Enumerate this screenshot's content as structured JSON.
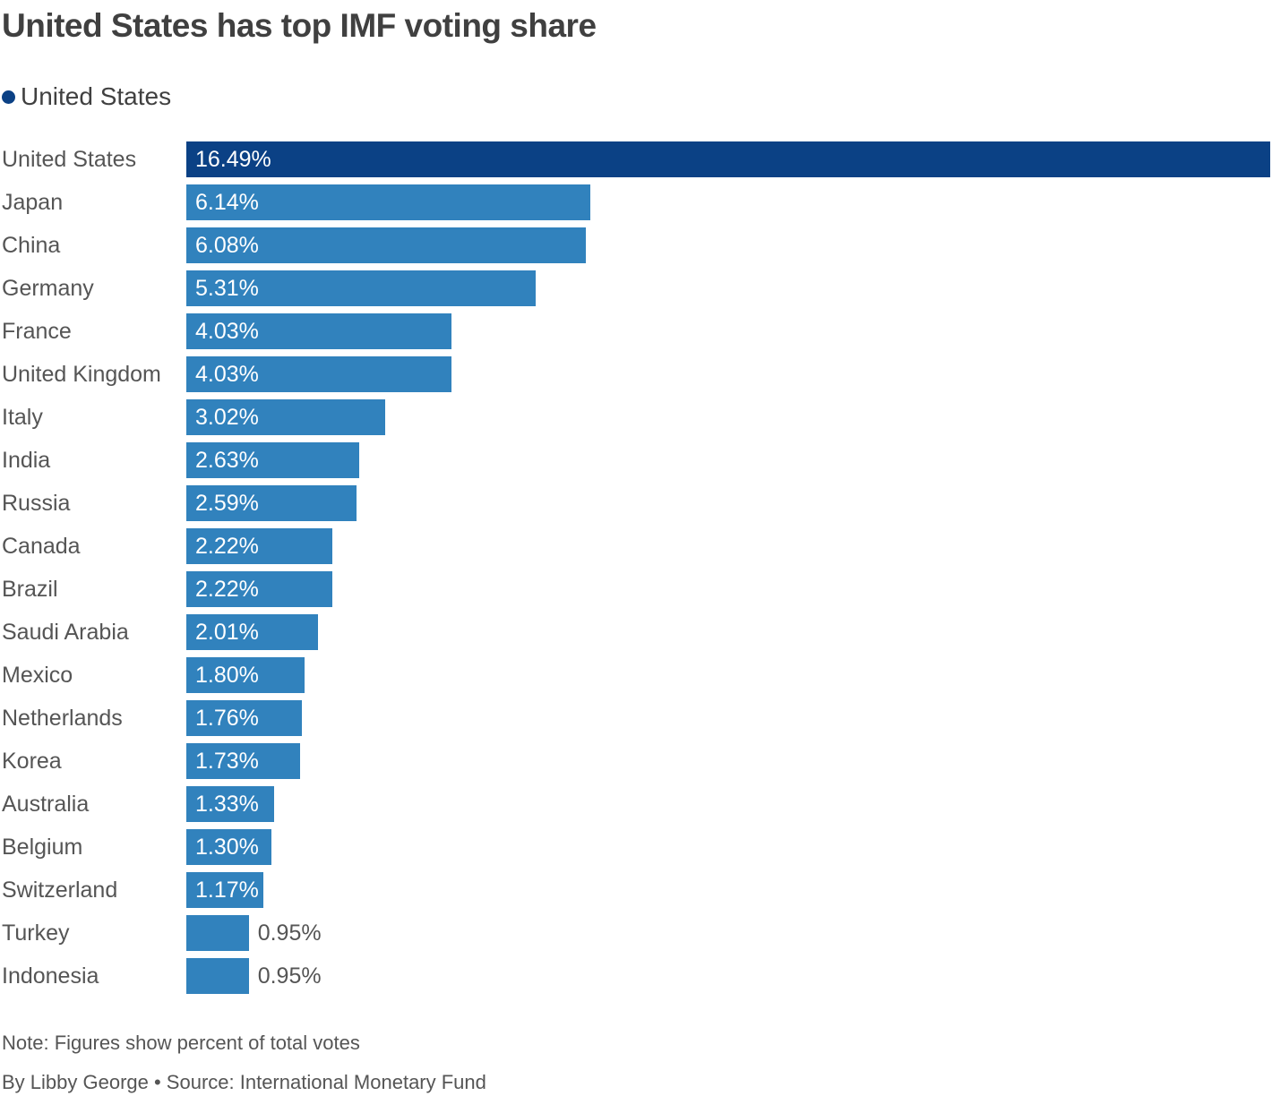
{
  "chart_data": {
    "type": "bar",
    "orientation": "horizontal",
    "title": "United States has top IMF voting share",
    "legend": [
      {
        "name": "United States",
        "color": "#0b4185"
      }
    ],
    "legend_placement": "top-left",
    "categories": [
      "United States",
      "Japan",
      "China",
      "Germany",
      "France",
      "United Kingdom",
      "Italy",
      "India",
      "Russia",
      "Canada",
      "Brazil",
      "Saudi Arabia",
      "Mexico",
      "Netherlands",
      "Korea",
      "Australia",
      "Belgium",
      "Switzerland",
      "Turkey",
      "Indonesia"
    ],
    "values": [
      16.49,
      6.14,
      6.08,
      5.31,
      4.03,
      4.03,
      3.02,
      2.63,
      2.59,
      2.22,
      2.22,
      2.01,
      1.8,
      1.76,
      1.73,
      1.33,
      1.3,
      1.17,
      0.95,
      0.95
    ],
    "value_labels": [
      "16.49%",
      "6.14%",
      "6.08%",
      "5.31%",
      "4.03%",
      "4.03%",
      "3.02%",
      "2.63%",
      "2.59%",
      "2.22%",
      "2.22%",
      "2.01%",
      "1.80%",
      "1.76%",
      "1.73%",
      "1.33%",
      "1.30%",
      "1.17%",
      "0.95%",
      "0.95%"
    ],
    "highlight_category": "United States",
    "colors": {
      "highlight": "#0b4185",
      "default": "#3182bd"
    },
    "xlim": [
      0,
      16.49
    ],
    "grid": false,
    "note": "Note: Figures show percent of total votes",
    "source": "By Libby George • Source: International Monetary Fund"
  }
}
